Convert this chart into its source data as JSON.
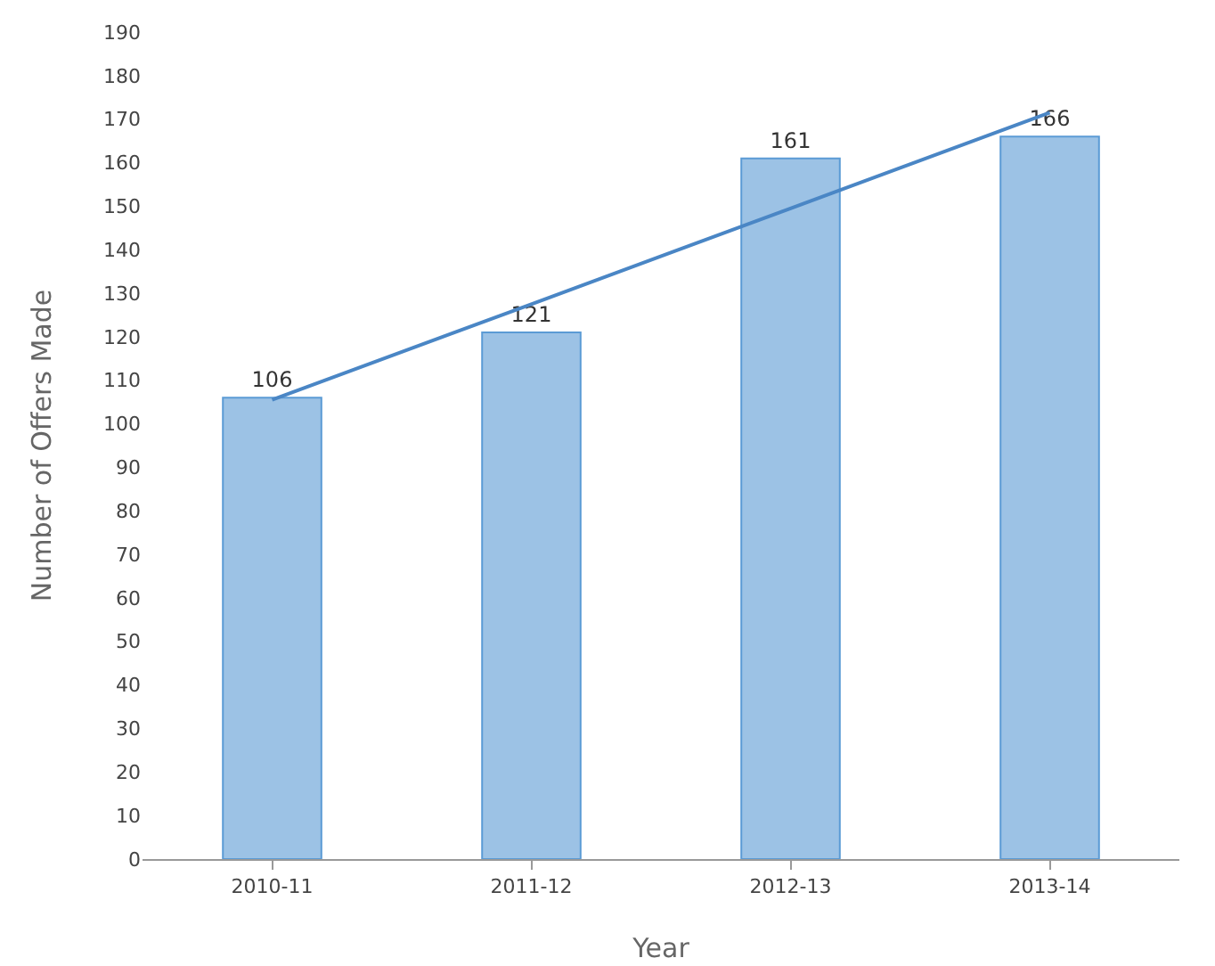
{
  "chart_data": {
    "type": "bar",
    "xlabel": "Year",
    "ylabel": "Number of Offers Made",
    "categories": [
      "2010-11",
      "2011-12",
      "2012-13",
      "2013-14"
    ],
    "series": [
      {
        "color": "#9cc2e5",
        "values": [
          106,
          121,
          161,
          166
        ],
        "value_labels": [
          "106",
          "121",
          "161",
          "166"
        ]
      },
      {
        "type": "line",
        "color": "#4a86c5",
        "values": [
          105.5,
          127.5,
          149.5,
          171.5
        ]
      }
    ],
    "ylim": [
      0,
      190
    ],
    "yticks": [
      0,
      10,
      20,
      30,
      40,
      50,
      60,
      70,
      80,
      90,
      100,
      110,
      120,
      130,
      140,
      150,
      160,
      170,
      180,
      190
    ],
    "grid": false,
    "legend": false,
    "marker": "none",
    "line_style": "solid"
  }
}
